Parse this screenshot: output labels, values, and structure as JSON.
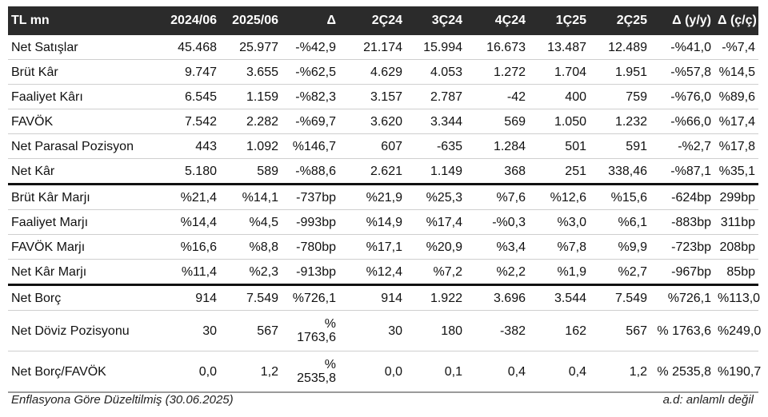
{
  "table": {
    "headers": [
      "TL mn",
      "2024/06",
      "2025/06",
      "Δ",
      "2Ç24",
      "3Ç24",
      "4Ç24",
      "1Ç25",
      "2Ç25",
      "Δ (y/y)",
      "Δ (ç/ç)"
    ],
    "rows": [
      [
        "Net Satışlar",
        "45.468",
        "25.977",
        "-%42,9",
        "21.174",
        "15.994",
        "16.673",
        "13.487",
        "12.489",
        "-%41,0",
        "-%7,4"
      ],
      [
        "Brüt Kâr",
        "9.747",
        "3.655",
        "-%62,5",
        "4.629",
        "4.053",
        "1.272",
        "1.704",
        "1.951",
        "-%57,8",
        "%14,5"
      ],
      [
        "Faaliyet Kârı",
        "6.545",
        "1.159",
        "-%82,3",
        "3.157",
        "2.787",
        "-42",
        "400",
        "759",
        "-%76,0",
        "%89,6"
      ],
      [
        "FAVÖK",
        "7.542",
        "2.282",
        "-%69,7",
        "3.620",
        "3.344",
        "569",
        "1.050",
        "1.232",
        "-%66,0",
        "%17,4"
      ],
      [
        "Net Parasal Pozisyon",
        "443",
        "1.092",
        "%146,7",
        "607",
        "-635",
        "1.284",
        "501",
        "591",
        "-%2,7",
        "%17,8"
      ],
      [
        "Net Kâr",
        "5.180",
        "589",
        "-%88,6",
        "2.621",
        "1.149",
        "368",
        "251",
        "338,46",
        "-%87,1",
        "%35,1"
      ],
      [
        "Brüt Kâr Marjı",
        "%21,4",
        "%14,1",
        "-737bp",
        "%21,9",
        "%25,3",
        "%7,6",
        "%12,6",
        "%15,6",
        "-624bp",
        "299bp"
      ],
      [
        "Faaliyet Marjı",
        "%14,4",
        "%4,5",
        "-993bp",
        "%14,9",
        "%17,4",
        "-%0,3",
        "%3,0",
        "%6,1",
        "-883bp",
        "311bp"
      ],
      [
        "FAVÖK Marjı",
        "%16,6",
        "%8,8",
        "-780bp",
        "%17,1",
        "%20,9",
        "%3,4",
        "%7,8",
        "%9,9",
        "-723bp",
        "208bp"
      ],
      [
        "Net Kâr Marjı",
        "%11,4",
        "%2,3",
        "-913bp",
        "%12,4",
        "%7,2",
        "%2,2",
        "%1,9",
        "%2,7",
        "-967bp",
        "85bp"
      ],
      [
        "Net Borç",
        "914",
        "7.549",
        "%726,1",
        "914",
        "1.922",
        "3.696",
        "3.544",
        "7.549",
        "%726,1",
        "%113,0"
      ],
      [
        "Net Döviz Pozisyonu",
        "30",
        "567",
        "% 1763,6",
        "30",
        "180",
        "-382",
        "162",
        "567",
        "% 1763,6",
        "%249,0"
      ],
      [
        "Net Borç/FAVÖK",
        "0,0",
        "1,2",
        "% 2535,8",
        "0,0",
        "0,1",
        "0,4",
        "0,4",
        "1,2",
        "% 2535,8",
        "%190,7"
      ]
    ]
  },
  "footer": {
    "left": "Enflasyona Göre Düzeltilmiş (30.06.2025)",
    "right": "a.d: anlamlı değil"
  }
}
